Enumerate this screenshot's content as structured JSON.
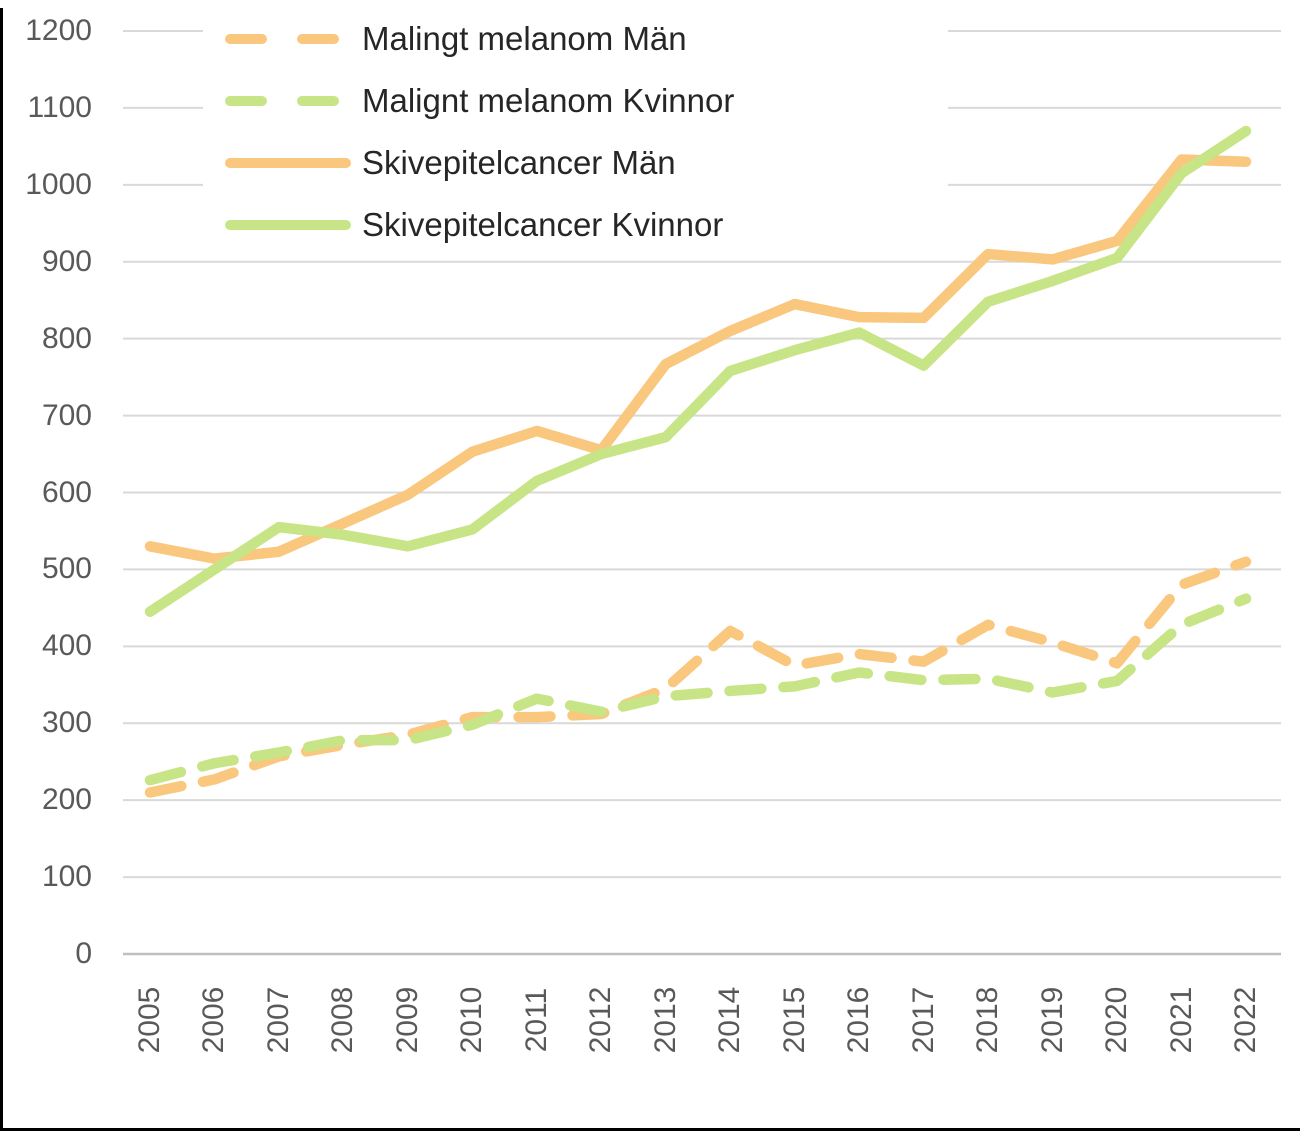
{
  "chart_data": {
    "type": "line",
    "x": [
      "2005",
      "2006",
      "2007",
      "2008",
      "2009",
      "2010",
      "2011",
      "2012",
      "2013",
      "2014",
      "2015",
      "2016",
      "2017",
      "2018",
      "2019",
      "2020",
      "2021",
      "2022"
    ],
    "series": [
      {
        "name": "Malingt melanom Män",
        "color": "#F9C77D",
        "dashed": true,
        "values": [
          210,
          227,
          257,
          272,
          285,
          308,
          308,
          312,
          345,
          420,
          375,
          390,
          380,
          428,
          405,
          378,
          480,
          510
        ]
      },
      {
        "name": "Malignt melanom Kvinnor",
        "color": "#C7E586",
        "dashed": true,
        "values": [
          226,
          248,
          262,
          278,
          278,
          298,
          332,
          315,
          335,
          342,
          348,
          366,
          356,
          358,
          340,
          355,
          428,
          462
        ]
      },
      {
        "name": "Skivepitelcancer Män",
        "color": "#F9C77D",
        "dashed": false,
        "values": [
          530,
          514,
          523,
          560,
          597,
          653,
          680,
          655,
          767,
          810,
          845,
          828,
          827,
          910,
          903,
          927,
          1033,
          1030
        ]
      },
      {
        "name": "Skivepitelcancer Kvinnor",
        "color": "#C7E586",
        "dashed": false,
        "values": [
          445,
          500,
          555,
          545,
          530,
          552,
          615,
          650,
          672,
          758,
          785,
          808,
          765,
          848,
          875,
          905,
          1015,
          1070
        ]
      }
    ],
    "title": "",
    "xlabel": "",
    "ylabel": "",
    "ylim": [
      0,
      1200
    ],
    "ytick_step": 100,
    "yticks": [
      "0",
      "100",
      "200",
      "300",
      "400",
      "500",
      "600",
      "700",
      "800",
      "900",
      "1000",
      "1100",
      "1200"
    ],
    "grid": true,
    "legend_position": "top-left"
  },
  "colors": {
    "background": "#ffffff",
    "gridline": "#D9D9D9",
    "axis_line": "#BFBFBF",
    "tick_text": "#595959",
    "legend_text": "#262626",
    "screen_border": "#000000"
  }
}
